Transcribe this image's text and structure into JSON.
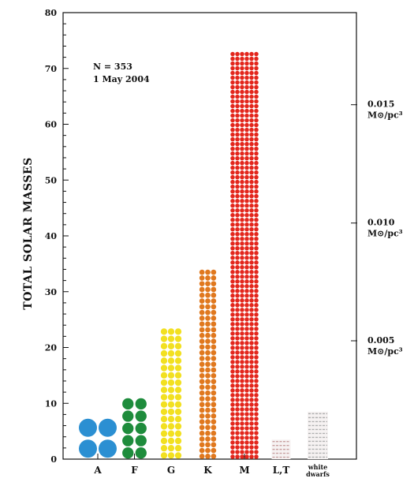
{
  "chart_data": {
    "type": "bar",
    "ylabel": "TOTAL SOLAR MASSES",
    "xlabel": "",
    "ylim": [
      0,
      80
    ],
    "yticks": [
      0,
      10,
      20,
      30,
      40,
      50,
      60,
      70,
      80
    ],
    "categories": [
      "A",
      "F",
      "G",
      "K",
      "M",
      "L,T",
      "white dwarfs"
    ],
    "category_lines": [
      [
        "A"
      ],
      [
        "F"
      ],
      [
        "G"
      ],
      [
        "K"
      ],
      [
        "M"
      ],
      [
        "L,T"
      ],
      [
        "white",
        "dwarfs"
      ]
    ],
    "values": [
      7.5,
      11,
      23.5,
      34,
      73,
      3.5,
      8.5
    ],
    "colors": [
      "#2b8fd2",
      "#1e8c3c",
      "#f2e020",
      "#e0781e",
      "#e3261c",
      "#c8a0a0",
      "#b0b0b0"
    ],
    "marker_style": [
      "disc",
      "disc",
      "disc",
      "disc",
      "disc",
      "dash",
      "dash"
    ],
    "annotations": {
      "line1": "N = 353",
      "line2": "1 May 2004"
    },
    "right_axis": [
      {
        "value": 0.015,
        "label_top": "0.015",
        "label_bottom": "M⊙/pc³",
        "at_y": 63.5
      },
      {
        "value": 0.01,
        "label_top": "0.010",
        "label_bottom": "M⊙/pc³",
        "at_y": 42.3
      },
      {
        "value": 0.005,
        "label_top": "0.005",
        "label_bottom": "M⊙/pc³",
        "at_y": 21.2
      }
    ],
    "grid": false,
    "legend": "none"
  }
}
